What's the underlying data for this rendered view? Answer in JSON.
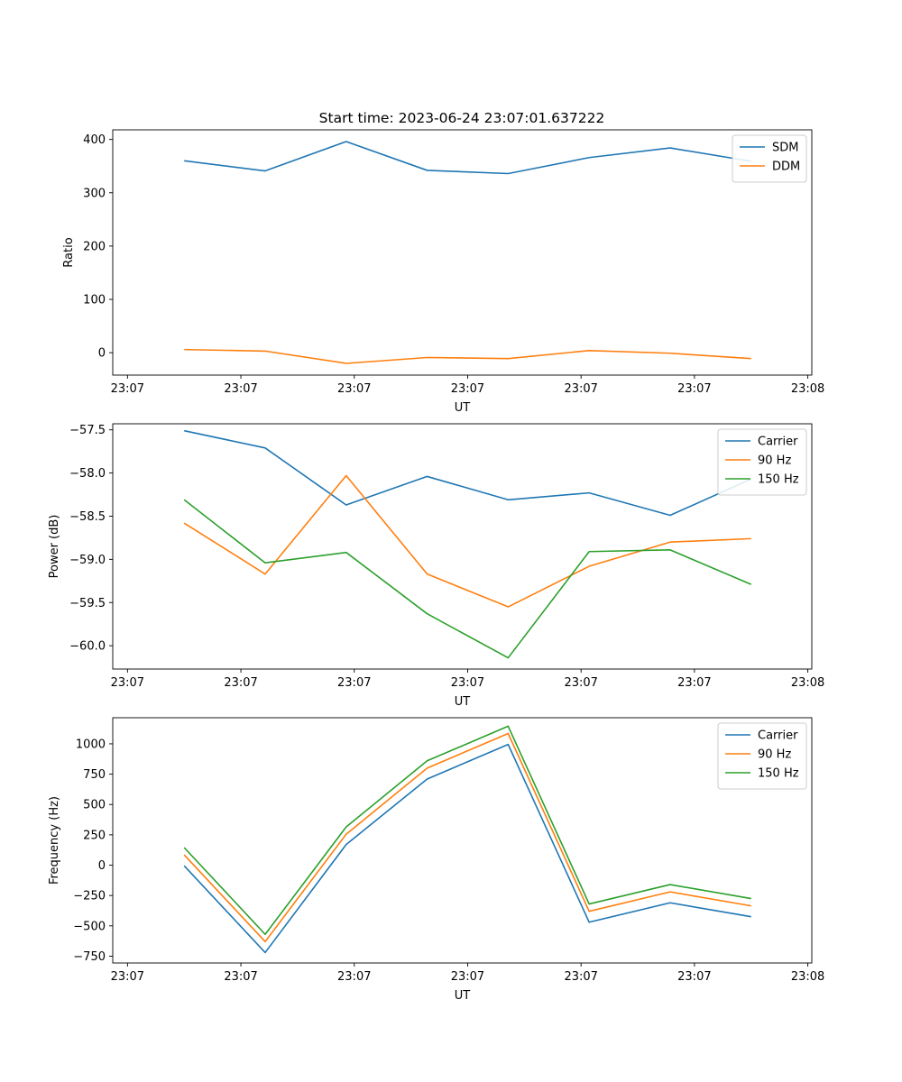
{
  "figure": {
    "title": "Start time: 2023-06-24 23:07:01.637222"
  },
  "chart_data": [
    {
      "type": "line",
      "title": "Start time: 2023-06-24 23:07:01.637222",
      "xlabel": "UT",
      "ylabel": "Ratio",
      "x": [
        "23:07:01.637",
        "23:07:01.767",
        "23:07:01.897",
        "23:07:02.027",
        "23:07:02.157",
        "23:07:02.287",
        "23:07:02.417",
        "23:07:02.547"
      ],
      "xticks": [
        {
          "t": -0.1,
          "label": "23:07"
        },
        {
          "t": 0.1,
          "label": "23:07"
        },
        {
          "t": 0.3,
          "label": "23:07"
        },
        {
          "t": 0.5,
          "label": "23:07"
        },
        {
          "t": 0.7,
          "label": "23:07"
        },
        {
          "t": 0.9,
          "label": "23:07"
        },
        {
          "t": 1.1,
          "label": "23:08"
        }
      ],
      "xlim": [
        -0.126,
        1.107
      ],
      "ylim": [
        -42,
        418
      ],
      "yticks": [
        0,
        100,
        200,
        300,
        400
      ],
      "legend": "top-right",
      "series": [
        {
          "name": "SDM",
          "color": "#1f77b4",
          "values": [
            360,
            341,
            396,
            342,
            336,
            366,
            384,
            359
          ]
        },
        {
          "name": "DDM",
          "color": "#ff7f0e",
          "values": [
            6,
            3,
            -20,
            -9,
            -11,
            4,
            -1,
            -11
          ]
        }
      ]
    },
    {
      "type": "line",
      "xlabel": "UT",
      "ylabel": "Power (dB)",
      "x": [
        "23:07:01.637",
        "23:07:01.767",
        "23:07:01.897",
        "23:07:02.027",
        "23:07:02.157",
        "23:07:02.287",
        "23:07:02.417",
        "23:07:02.547"
      ],
      "xticks": [
        {
          "t": -0.1,
          "label": "23:07"
        },
        {
          "t": 0.1,
          "label": "23:07"
        },
        {
          "t": 0.3,
          "label": "23:07"
        },
        {
          "t": 0.5,
          "label": "23:07"
        },
        {
          "t": 0.7,
          "label": "23:07"
        },
        {
          "t": 0.9,
          "label": "23:07"
        },
        {
          "t": 1.1,
          "label": "23:08"
        }
      ],
      "xlim": [
        -0.126,
        1.107
      ],
      "ylim": [
        -60.27,
        -57.43
      ],
      "yticks": [
        -60.0,
        -59.5,
        -59.0,
        -58.5,
        -58.0,
        -57.5
      ],
      "ytick_labels": [
        "−60.0",
        "−59.5",
        "−59.0",
        "−58.5",
        "−58.0",
        "−57.5"
      ],
      "legend": "top-right",
      "series": [
        {
          "name": "Carrier",
          "color": "#1f77b4",
          "values": [
            -57.51,
            -57.71,
            -58.37,
            -58.04,
            -58.31,
            -58.23,
            -58.49,
            -58.07
          ]
        },
        {
          "name": "90 Hz",
          "color": "#ff7f0e",
          "values": [
            -58.58,
            -59.17,
            -58.03,
            -59.17,
            -59.55,
            -59.08,
            -58.8,
            -58.76
          ]
        },
        {
          "name": "150 Hz",
          "color": "#2ca02c",
          "values": [
            -58.31,
            -59.04,
            -58.92,
            -59.63,
            -60.14,
            -58.91,
            -58.89,
            -59.29
          ]
        }
      ]
    },
    {
      "type": "line",
      "xlabel": "UT",
      "ylabel": "Frequency (Hz)",
      "x": [
        "23:07:01.637",
        "23:07:01.767",
        "23:07:01.897",
        "23:07:02.027",
        "23:07:02.157",
        "23:07:02.287",
        "23:07:02.417",
        "23:07:02.547"
      ],
      "xticks": [
        {
          "t": -0.1,
          "label": "23:07"
        },
        {
          "t": 0.1,
          "label": "23:07"
        },
        {
          "t": 0.3,
          "label": "23:07"
        },
        {
          "t": 0.5,
          "label": "23:07"
        },
        {
          "t": 0.7,
          "label": "23:07"
        },
        {
          "t": 0.9,
          "label": "23:07"
        },
        {
          "t": 1.1,
          "label": "23:08"
        }
      ],
      "xlim": [
        -0.126,
        1.107
      ],
      "ylim": [
        -806,
        1215
      ],
      "yticks": [
        -750,
        -500,
        -250,
        0,
        250,
        500,
        750,
        1000
      ],
      "ytick_labels": [
        "−750",
        "−500",
        "−250",
        "0",
        "250",
        "500",
        "750",
        "1000"
      ],
      "legend": "top-right",
      "series": [
        {
          "name": "Carrier",
          "color": "#1f77b4",
          "values": [
            -5,
            -720,
            170,
            710,
            995,
            -470,
            -310,
            -425
          ]
        },
        {
          "name": "90 Hz",
          "color": "#ff7f0e",
          "values": [
            85,
            -630,
            255,
            800,
            1085,
            -380,
            -220,
            -335
          ]
        },
        {
          "name": "150 Hz",
          "color": "#2ca02c",
          "values": [
            145,
            -570,
            315,
            860,
            1145,
            -320,
            -160,
            -275
          ]
        }
      ]
    }
  ]
}
